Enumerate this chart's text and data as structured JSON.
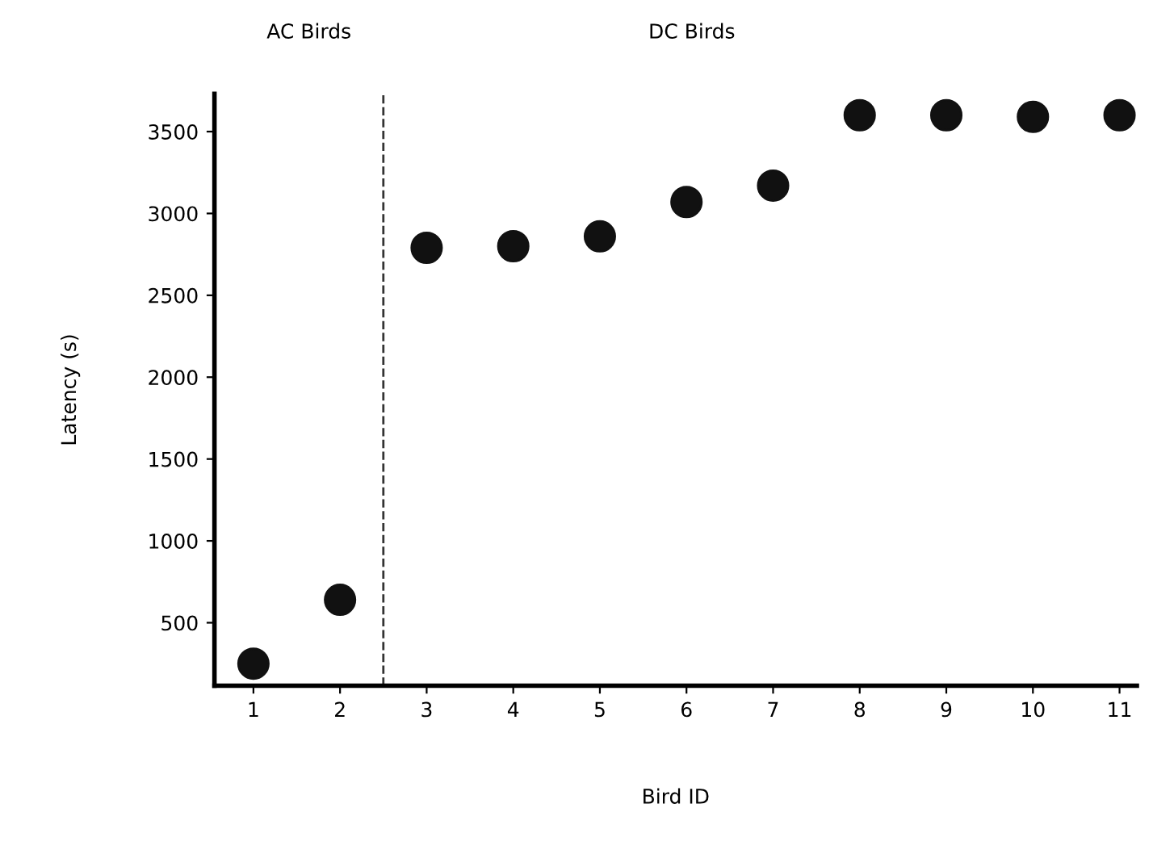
{
  "chart_data": {
    "type": "scatter",
    "xlabel": "Bird ID",
    "ylabel": "Latency (s)",
    "x": [
      1,
      2,
      3,
      4,
      5,
      6,
      7,
      8,
      9,
      10,
      11
    ],
    "series": [
      {
        "color": "#111111",
        "values": [
          250,
          640,
          2790,
          2800,
          2860,
          3070,
          3170,
          3600,
          3600,
          3590,
          3600
        ]
      }
    ],
    "xlim": [
      0.55,
      11.2
    ],
    "xticks": [
      1,
      2,
      3,
      4,
      5,
      6,
      7,
      8,
      9,
      10,
      11
    ],
    "ylim": [
      115,
      3730
    ],
    "yticks": [
      500,
      1000,
      1500,
      2000,
      2500,
      3000,
      3500
    ],
    "ref_lines": [
      {
        "axis": "x",
        "value": 2.5,
        "line_style": "dashed",
        "color": "#333333"
      }
    ],
    "annotations": [
      "AC Birds",
      "DC Birds"
    ],
    "marker": "circle",
    "grid": false,
    "legend": false
  }
}
